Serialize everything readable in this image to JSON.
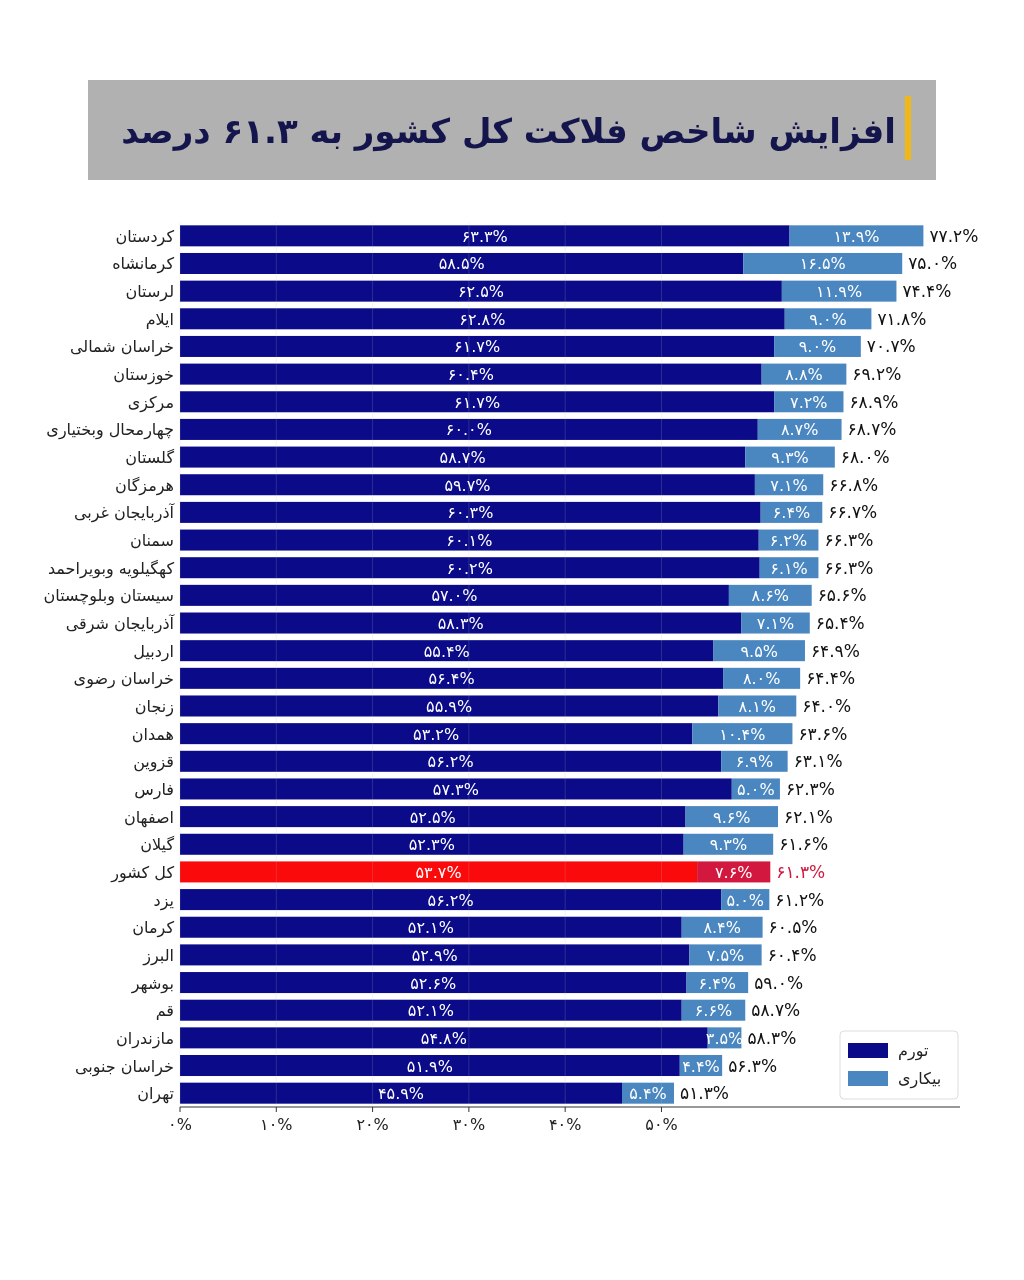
{
  "chart_data": {
    "type": "bar",
    "orientation": "horizontal",
    "stacked": true,
    "title": "افزایش شاخص فلاکت کل کشور به ۶۱.۳ درصد",
    "categories": [
      "کردستان",
      "کرمانشاه",
      "لرستان",
      "ایلام",
      "خراسان شمالی",
      "خوزستان",
      "مرکزی",
      "چهارمحال وبختیاری",
      "گلستان",
      "هرمزگان",
      "آذربایجان غربی",
      "سمنان",
      "کهگیلویه وبویراحمد",
      "سیستان وبلوچستان",
      "آذربایجان شرقی",
      "اردبیل",
      "خراسان رضوی",
      "زنجان",
      "همدان",
      "قزوین",
      "فارس",
      "اصفهان",
      "گیلان",
      "کل کشور",
      "یزد",
      "کرمان",
      "البرز",
      "بوشهر",
      "قم",
      "مازندران",
      "خراسان جنوبی",
      "تهران"
    ],
    "series": [
      {
        "name": "تورم",
        "color": "#0b0b8a",
        "colors": [
          "#0b0b8a",
          "#0b0b8a",
          "#0b0b8a",
          "#0b0b8a",
          "#0b0b8a",
          "#0b0b8a",
          "#0b0b8a",
          "#0b0b8a",
          "#0b0b8a",
          "#0b0b8a",
          "#0b0b8a",
          "#0b0b8a",
          "#0b0b8a",
          "#0b0b8a",
          "#0b0b8a",
          "#0b0b8a",
          "#0b0b8a",
          "#0b0b8a",
          "#0b0b8a",
          "#0b0b8a",
          "#0b0b8a",
          "#0b0b8a",
          "#0b0b8a",
          "#fa0a0a",
          "#0b0b8a",
          "#0b0b8a",
          "#0b0b8a",
          "#0b0b8a",
          "#0b0b8a",
          "#0b0b8a",
          "#0b0b8a",
          "#0b0b8a"
        ],
        "values": [
          63.3,
          58.5,
          62.5,
          62.8,
          61.7,
          60.4,
          61.7,
          60.0,
          58.7,
          59.7,
          60.3,
          60.1,
          60.2,
          57.0,
          58.3,
          55.4,
          56.4,
          55.9,
          53.2,
          56.2,
          57.3,
          52.5,
          52.3,
          53.7,
          56.2,
          52.1,
          52.9,
          52.6,
          52.1,
          54.8,
          51.9,
          45.9
        ],
        "value_labels": [
          "۶۳.۳%",
          "۵۸.۵%",
          "۶۲.۵%",
          "۶۲.۸%",
          "۶۱.۷%",
          "۶۰.۴%",
          "۶۱.۷%",
          "۶۰.۰%",
          "۵۸.۷%",
          "۵۹.۷%",
          "۶۰.۳%",
          "۶۰.۱%",
          "۶۰.۲%",
          "۵۷.۰%",
          "۵۸.۳%",
          "۵۵.۴%",
          "۵۶.۴%",
          "۵۵.۹%",
          "۵۳.۲%",
          "۵۶.۲%",
          "۵۷.۳%",
          "۵۲.۵%",
          "۵۲.۳%",
          "۵۳.۷%",
          "۵۶.۲%",
          "۵۲.۱%",
          "۵۲.۹%",
          "۵۲.۶%",
          "۵۲.۱%",
          "۵۴.۸%",
          "۵۱.۹%",
          "۴۵.۹%"
        ]
      },
      {
        "name": "بیکاری",
        "color": "#4a86bf",
        "colors": [
          "#4a86bf",
          "#4a86bf",
          "#4a86bf",
          "#4a86bf",
          "#4a86bf",
          "#4a86bf",
          "#4a86bf",
          "#4a86bf",
          "#4a86bf",
          "#4a86bf",
          "#4a86bf",
          "#4a86bf",
          "#4a86bf",
          "#4a86bf",
          "#4a86bf",
          "#4a86bf",
          "#4a86bf",
          "#4a86bf",
          "#4a86bf",
          "#4a86bf",
          "#4a86bf",
          "#4a86bf",
          "#4a86bf",
          "#d2183e",
          "#4a86bf",
          "#4a86bf",
          "#4a86bf",
          "#4a86bf",
          "#4a86bf",
          "#4a86bf",
          "#4a86bf",
          "#4a86bf"
        ],
        "values": [
          13.9,
          16.5,
          11.9,
          9.0,
          9.0,
          8.8,
          7.2,
          8.7,
          9.3,
          7.1,
          6.4,
          6.2,
          6.1,
          8.6,
          7.1,
          9.5,
          8.0,
          8.1,
          10.4,
          6.9,
          5.0,
          9.6,
          9.3,
          7.6,
          5.0,
          8.4,
          7.5,
          6.4,
          6.6,
          3.5,
          4.4,
          5.4
        ],
        "value_labels": [
          "۱۳.۹%",
          "۱۶.۵%",
          "۱۱.۹%",
          "۹.۰%",
          "۹.۰%",
          "۸.۸%",
          "۷.۲%",
          "۸.۷%",
          "۹.۳%",
          "۷.۱%",
          "۶.۴%",
          "۶.۲%",
          "۶.۱%",
          "۸.۶%",
          "۷.۱%",
          "۹.۵%",
          "۸.۰%",
          "۸.۱%",
          "۱۰.۴%",
          "۶.۹%",
          "۵.۰%",
          "۹.۶%",
          "۹.۳%",
          "۷.۶%",
          "۵.۰%",
          "۸.۴%",
          "۷.۵%",
          "۶.۴%",
          "۶.۶%",
          "۳.۵%",
          "۴.۴%",
          "۵.۴%"
        ]
      }
    ],
    "totals": [
      "۷۷.۲%",
      "۷۵.۰%",
      "۷۴.۴%",
      "۷۱.۸%",
      "۷۰.۷%",
      "۶۹.۲%",
      "۶۸.۹%",
      "۶۸.۷%",
      "۶۸.۰%",
      "۶۶.۸%",
      "۶۶.۷%",
      "۶۶.۳%",
      "۶۶.۳%",
      "۶۵.۶%",
      "۶۵.۴%",
      "۶۴.۹%",
      "۶۴.۴%",
      "۶۴.۰%",
      "۶۳.۶%",
      "۶۳.۱%",
      "۶۲.۳%",
      "۶۲.۱%",
      "۶۱.۶%",
      "۶۱.۳%",
      "۶۱.۲%",
      "۶۰.۵%",
      "۶۰.۴%",
      "۵۹.۰%",
      "۵۸.۷%",
      "۵۸.۳%",
      "۵۶.۳%",
      "۵۱.۳%"
    ],
    "xlim": [
      0,
      81
    ],
    "xticks": [
      {
        "value": 0,
        "label": "۰%"
      },
      {
        "value": 10,
        "label": "۱۰%"
      },
      {
        "value": 20,
        "label": "۲۰%"
      },
      {
        "value": 30,
        "label": "۳۰%"
      },
      {
        "value": 40,
        "label": "۴۰%"
      },
      {
        "value": 50,
        "label": "۵۰%"
      }
    ],
    "grid": "x",
    "legend": "bottom right"
  }
}
